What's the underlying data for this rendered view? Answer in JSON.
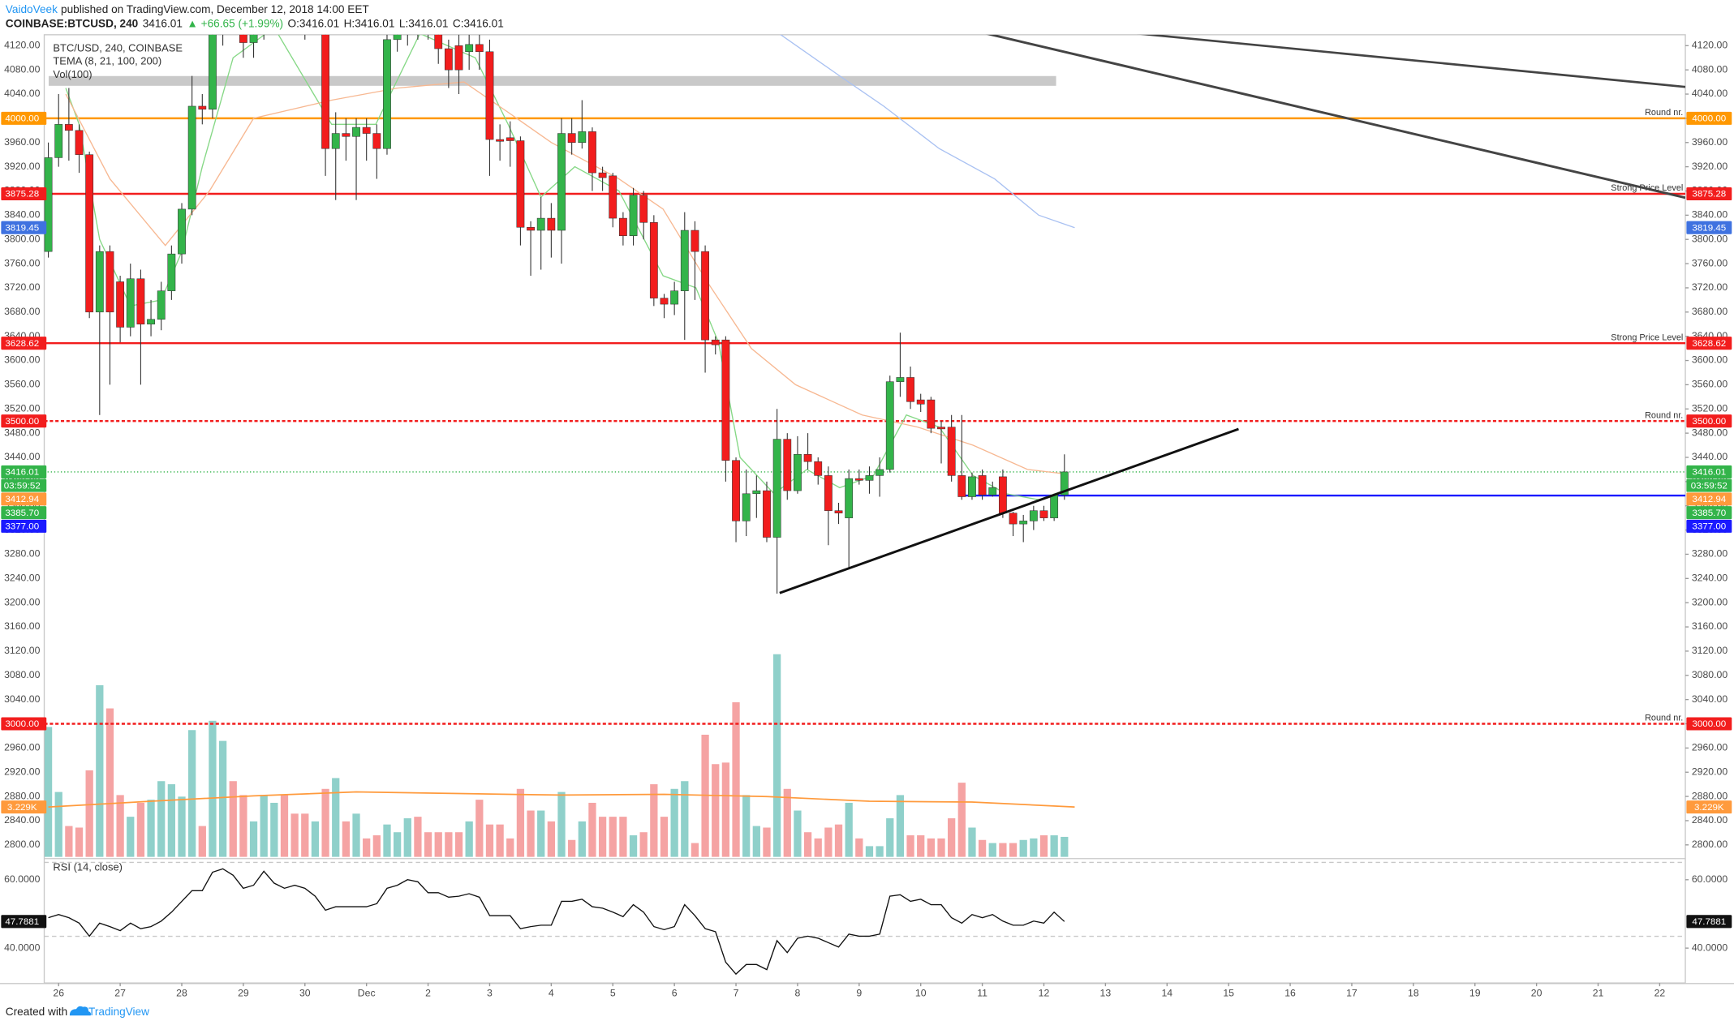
{
  "header": {
    "author": "VaidoVeek",
    "published": "published on TradingView.com, December 12, 2018 14:00 EET",
    "symbol": "COINBASE:BTCUSD, 240",
    "price": "3416.01",
    "change": "▲ +66.65 (+1.99%)",
    "open": "O:3416.01",
    "high": "H:3416.01",
    "low": "L:3416.01",
    "close": "C:3416.01"
  },
  "footer": {
    "text": "Created with",
    "brand": "TradingView"
  },
  "chart_data": {
    "type": "candlestick",
    "title": "BTC/USD, 240, COINBASE",
    "indicator_legend": "TEMA (8, 21, 100, 200)",
    "grid": false,
    "xlim": [
      -0.4,
      159.5
    ],
    "xticks": [
      {
        "value": 1,
        "label": "26"
      },
      {
        "value": 7,
        "label": "27"
      },
      {
        "value": 13,
        "label": "28"
      },
      {
        "value": 19,
        "label": "29"
      },
      {
        "value": 25,
        "label": "30"
      },
      {
        "value": 31,
        "label": "Dec"
      },
      {
        "value": 37,
        "label": "2"
      },
      {
        "value": 43,
        "label": "3"
      },
      {
        "value": 49,
        "label": "4"
      },
      {
        "value": 55,
        "label": "5"
      },
      {
        "value": 61,
        "label": "6"
      },
      {
        "value": 67,
        "label": "7"
      },
      {
        "value": 73,
        "label": "8"
      },
      {
        "value": 79,
        "label": "9"
      },
      {
        "value": 85,
        "label": "10"
      },
      {
        "value": 91,
        "label": "11"
      },
      {
        "value": 97,
        "label": "12"
      },
      {
        "value": 103,
        "label": "13"
      },
      {
        "value": 109,
        "label": "14"
      },
      {
        "value": 115,
        "label": "15"
      },
      {
        "value": 121,
        "label": "16"
      },
      {
        "value": 127,
        "label": "17"
      },
      {
        "value": 133,
        "label": "18"
      },
      {
        "value": 139,
        "label": "19"
      },
      {
        "value": 145,
        "label": "20"
      },
      {
        "value": 151,
        "label": "21"
      },
      {
        "value": 157,
        "label": "22"
      }
    ],
    "ylim": [
      2780,
      4138
    ],
    "yticks": [
      {
        "value": 2800,
        "label": "2800.00"
      },
      {
        "value": 2840,
        "label": "2840.00"
      },
      {
        "value": 2880,
        "label": "2880.00"
      },
      {
        "value": 2920,
        "label": "2920.00"
      },
      {
        "value": 2960,
        "label": "2960.00"
      },
      {
        "value": 3000,
        "label": "3000.00"
      },
      {
        "value": 3040,
        "label": "3040.00"
      },
      {
        "value": 3080,
        "label": "3080.00"
      },
      {
        "value": 3120,
        "label": "3120.00"
      },
      {
        "value": 3160,
        "label": "3160.00"
      },
      {
        "value": 3200,
        "label": "3200.00"
      },
      {
        "value": 3240,
        "label": "3240.00"
      },
      {
        "value": 3280,
        "label": "3280.00"
      },
      {
        "value": 3320,
        "label": "3320.00"
      },
      {
        "value": 3360,
        "label": "3360.00"
      },
      {
        "value": 3400,
        "label": "3400.00"
      },
      {
        "value": 3440,
        "label": "3440.00"
      },
      {
        "value": 3480,
        "label": "3480.00"
      },
      {
        "value": 3520,
        "label": "3520.00"
      },
      {
        "value": 3560,
        "label": "3560.00"
      },
      {
        "value": 3600,
        "label": "3600.00"
      },
      {
        "value": 3640,
        "label": "3640.00"
      },
      {
        "value": 3680,
        "label": "3680.00"
      },
      {
        "value": 3720,
        "label": "3720.00"
      },
      {
        "value": 3760,
        "label": "3760.00"
      },
      {
        "value": 3800,
        "label": "3800.00"
      },
      {
        "value": 3840,
        "label": "3840.00"
      },
      {
        "value": 3880,
        "label": "3880.00"
      },
      {
        "value": 3920,
        "label": "3920.00"
      },
      {
        "value": 3960,
        "label": "3960.00"
      },
      {
        "value": 4000,
        "label": "4000.00"
      },
      {
        "value": 4040,
        "label": "4040.00"
      },
      {
        "value": 4080,
        "label": "4080.00"
      },
      {
        "value": 4120,
        "label": "4120.00"
      }
    ],
    "up_color": "#33b44a",
    "down_color": "#f21d1d",
    "open": [
      3780,
      3935,
      3990,
      3980,
      3940,
      3680,
      3780,
      3730,
      3655,
      3735,
      3660,
      3668,
      3715,
      3776,
      3850,
      4020,
      4015,
      4150,
      4180,
      4160,
      4125,
      4140,
      4200,
      4230,
      4210,
      4180,
      4170,
      4200,
      3950,
      3975,
      3970,
      3985,
      3975,
      3950,
      4130,
      4150,
      4170,
      4160,
      4145,
      4115,
      4120,
      4110,
      4122,
      4110,
      3965,
      3968,
      3963,
      3820,
      3815,
      3835,
      3815,
      3975,
      3960,
      3978,
      3910,
      3905,
      3835,
      3806,
      3873,
      3828,
      3703,
      3693,
      3715,
      3815,
      3780,
      3634,
      3634,
      3435,
      3335,
      3380,
      3385,
      3308,
      3470,
      3385,
      3445,
      3433,
      3410,
      3352,
      3340,
      3405,
      3402,
      3410,
      3420,
      3565,
      3572,
      3535,
      3535,
      3490,
      3490,
      3410,
      3375,
      3410,
      3378,
      3408,
      3348,
      3330,
      3335,
      3352,
      3340,
      3378
    ],
    "high": [
      3960,
      4040,
      4050,
      3990,
      3945,
      3790,
      3790,
      3740,
      3760,
      3750,
      3700,
      3730,
      3790,
      3860,
      4070,
      4040,
      4180,
      4220,
      4200,
      4170,
      4160,
      4230,
      4260,
      4280,
      4240,
      4220,
      4230,
      4230,
      4010,
      4000,
      4000,
      4000,
      3990,
      4140,
      4180,
      4200,
      4210,
      4190,
      4160,
      4130,
      4140,
      4140,
      4140,
      4130,
      3990,
      3995,
      3970,
      3830,
      3870,
      3860,
      4000,
      4000,
      4030,
      3985,
      3920,
      3910,
      3845,
      3885,
      3880,
      3840,
      3710,
      3730,
      3845,
      3830,
      3790,
      3640,
      3640,
      3440,
      3420,
      3410,
      3400,
      3520,
      3480,
      3475,
      3480,
      3440,
      3425,
      3365,
      3420,
      3420,
      3425,
      3440,
      3575,
      3646,
      3590,
      3545,
      3540,
      3500,
      3510,
      3510,
      3415,
      3420,
      3400,
      3420,
      3350,
      3345,
      3360,
      3360,
      3380,
      3445
    ],
    "low": [
      3770,
      3920,
      3930,
      3910,
      3670,
      3510,
      3560,
      3630,
      3640,
      3560,
      3640,
      3650,
      3700,
      3760,
      3840,
      3990,
      4000,
      4120,
      4140,
      4100,
      4100,
      4130,
      4170,
      4190,
      4150,
      4130,
      4140,
      3905,
      3865,
      3930,
      3865,
      3930,
      3900,
      3940,
      4110,
      4120,
      4130,
      4130,
      4090,
      4050,
      4040,
      4080,
      4080,
      3905,
      3930,
      3920,
      3790,
      3740,
      3750,
      3770,
      3760,
      3940,
      3950,
      3880,
      3880,
      3820,
      3790,
      3790,
      3800,
      3690,
      3670,
      3675,
      3634,
      3700,
      3580,
      3610,
      3400,
      3300,
      3310,
      3340,
      3300,
      3215,
      3370,
      3380,
      3420,
      3395,
      3295,
      3330,
      3255,
      3395,
      3380,
      3375,
      3415,
      3540,
      3520,
      3515,
      3480,
      3430,
      3400,
      3370,
      3370,
      3370,
      3375,
      3340,
      3310,
      3300,
      3320,
      3335,
      3335,
      3370
    ],
    "close": [
      3935,
      3990,
      3980,
      3940,
      3680,
      3780,
      3680,
      3655,
      3735,
      3660,
      3668,
      3715,
      3776,
      3850,
      4020,
      4015,
      4150,
      4180,
      4160,
      4125,
      4140,
      4200,
      4230,
      4210,
      4180,
      4170,
      4200,
      3950,
      3975,
      3970,
      3985,
      3975,
      3950,
      4130,
      4150,
      4170,
      4160,
      4145,
      4115,
      4080,
      4080,
      4122,
      4110,
      3965,
      3962,
      3963,
      3820,
      3815,
      3835,
      3815,
      3975,
      3960,
      3978,
      3910,
      3902,
      3835,
      3806,
      3873,
      3828,
      3703,
      3693,
      3715,
      3815,
      3780,
      3634,
      3626,
      3435,
      3335,
      3380,
      3385,
      3308,
      3470,
      3385,
      3445,
      3433,
      3410,
      3352,
      3348,
      3405,
      3402,
      3410,
      3420,
      3565,
      3572,
      3532,
      3528,
      3488,
      3487,
      3410,
      3375,
      3408,
      3378,
      3390,
      3348,
      3330,
      3335,
      3352,
      3340,
      3378,
      3416.01
    ],
    "volume": {
      "name": "Vol(100)",
      "up_color": "#8fd0ca",
      "down_color": "#f5a3a3",
      "values": [
        8.4,
        4.2,
        2.0,
        1.9,
        5.6,
        11.1,
        9.6,
        4.0,
        2.6,
        3.5,
        3.7,
        4.9,
        4.7,
        3.9,
        8.2,
        2.0,
        8.8,
        7.5,
        4.9,
        4.0,
        2.3,
        4.0,
        3.5,
        4.0,
        2.8,
        2.8,
        2.3,
        4.4,
        5.1,
        2.3,
        2.8,
        1.2,
        1.4,
        2.1,
        1.6,
        2.5,
        2.6,
        1.6,
        1.6,
        1.6,
        1.6,
        2.3,
        3.7,
        2.1,
        2.1,
        1.2,
        4.4,
        3.0,
        3.0,
        2.3,
        4.2,
        1.1,
        2.3,
        3.5,
        2.6,
        2.6,
        2.6,
        1.4,
        1.6,
        4.7,
        2.6,
        4.4,
        4.9,
        0.9,
        7.9,
        6.0,
        6.1,
        10.0,
        4.0,
        2.0,
        1.9,
        13.1,
        4.4,
        3.0,
        1.6,
        1.2,
        1.9,
        2.1,
        3.5,
        1.2,
        0.7,
        0.7,
        2.5,
        4.0,
        1.4,
        1.4,
        1.2,
        1.2,
        2.5,
        4.8,
        1.9,
        1.1,
        0.9,
        0.9,
        0.9,
        1.1,
        1.2,
        1.4,
        1.4,
        1.3
      ],
      "ma": {
        "color": "#ff9a3c",
        "x": [
          0,
          10,
          20,
          30,
          40,
          50,
          60,
          70,
          80,
          90,
          100
        ],
        "values": [
          3.23,
          3.6,
          3.95,
          4.2,
          4.1,
          4.0,
          4.05,
          3.9,
          3.6,
          3.55,
          3.229
        ],
        "last_label": "3.229K"
      }
    },
    "tema": [
      {
        "color": "#86d886",
        "label_color": "#33b44a",
        "last_label": "3385.70",
        "x": [
          1.7,
          3,
          5,
          8,
          11,
          13,
          15,
          18,
          22,
          27.6,
          31.9,
          36.2,
          41.6,
          44.8,
          48,
          51.3,
          55.6,
          59.9,
          63.1,
          65.3,
          67.4,
          70.7,
          73.9,
          77.1,
          80.4,
          83.6,
          86.8,
          90.1,
          93.3,
          96.5,
          99
        ],
        "values": [
          4050,
          3990,
          3800,
          3690,
          3700,
          3780,
          3920,
          4100,
          4150,
          3990,
          3990,
          4140,
          4100,
          3990,
          3870,
          3920,
          3880,
          3740,
          3720,
          3630,
          3440,
          3380,
          3420,
          3390,
          3410,
          3510,
          3490,
          3410,
          3380,
          3370,
          3385.7
        ]
      },
      {
        "color": "#f7b892",
        "label_color": "#ff9a3c",
        "last_label": "3412.94",
        "x": [
          1.7,
          6,
          11.4,
          15.7,
          20,
          27.6,
          34,
          40.5,
          44.8,
          49,
          55.6,
          59.9,
          64.2,
          68.5,
          72.8,
          79.3,
          84.7,
          90.1,
          95.4,
          99
        ],
        "values": [
          4040,
          3900,
          3790,
          3880,
          4000,
          4030,
          4050,
          4060,
          4010,
          3960,
          3900,
          3850,
          3730,
          3620,
          3560,
          3510,
          3490,
          3460,
          3420,
          3412.94
        ]
      },
      {
        "color": "#a9c1f2",
        "label_color": "#3f72e0",
        "last_label": "3819.45",
        "x": [
          71.2,
          77.1,
          81.4,
          86.8,
          92.2,
          96.5,
          100
        ],
        "values": [
          4140,
          4070,
          4020,
          3950,
          3900,
          3840,
          3819.45
        ]
      }
    ],
    "levels": [
      {
        "value": 4000,
        "label": "4000.00",
        "color": "#ff9800",
        "style": "solid",
        "note": "Round nr."
      },
      {
        "value": 3875.28,
        "label": "3875.28",
        "color": "#f21d1d",
        "style": "solid",
        "note": "Strong Price Level"
      },
      {
        "value": 3628.62,
        "label": "3628.62",
        "color": "#f21d1d",
        "style": "solid",
        "note": "Strong Price Level"
      },
      {
        "value": 3500,
        "label": "3500.00",
        "color": "#f21d1d",
        "style": "dashed",
        "note": "Round nr."
      },
      {
        "value": 3416.01,
        "label": "3416.01",
        "color": "#33b44a",
        "style": "dotted",
        "countdown": "03:59:52"
      },
      {
        "value": 3377,
        "label": "3377.00",
        "color": "#1a1aff",
        "style": "solid",
        "x_start": 89
      },
      {
        "value": 3000,
        "label": "3000.00",
        "color": "#f21d1d",
        "style": "dashed",
        "note": "Round nr."
      }
    ],
    "rsi": {
      "name": "RSI (14, close)",
      "color": "#111111",
      "ylim": [
        29.8,
        65.7
      ],
      "yticks": [
        {
          "value": 40,
          "label": "40.0000"
        },
        {
          "value": 60,
          "label": "60.0000"
        }
      ],
      "values": [
        48.9,
        49.8,
        48.9,
        47.3,
        43.5,
        47.3,
        46.3,
        45.1,
        47.3,
        45.7,
        46.3,
        47.9,
        50.5,
        53.7,
        56.8,
        56.8,
        62.2,
        63.2,
        61.3,
        57.5,
        58.4,
        62.5,
        59.0,
        57.5,
        58.4,
        57.5,
        55.2,
        51.1,
        52.1,
        52.1,
        52.1,
        52.1,
        53.0,
        57.5,
        58.4,
        60.0,
        59.4,
        56.2,
        56.2,
        54.9,
        55.2,
        55.9,
        54.9,
        49.5,
        49.5,
        49.5,
        45.7,
        46.3,
        46.7,
        46.7,
        53.7,
        53.7,
        54.3,
        52.1,
        51.7,
        50.5,
        49.2,
        52.7,
        50.5,
        46.3,
        45.4,
        46.3,
        52.7,
        49.5,
        45.7,
        44.8,
        35.9,
        32.4,
        35.2,
        35.2,
        33.7,
        42.2,
        38.7,
        42.9,
        43.5,
        42.9,
        41.6,
        40.3,
        44.1,
        43.5,
        43.5,
        44.1,
        55.2,
        55.6,
        53.7,
        54.3,
        52.7,
        52.7,
        48.9,
        47.3,
        49.8,
        48.9,
        49.8,
        47.9,
        46.7,
        46.7,
        47.9,
        47.3,
        50.5,
        47.7881
      ],
      "last_label": "47.7881"
    }
  }
}
